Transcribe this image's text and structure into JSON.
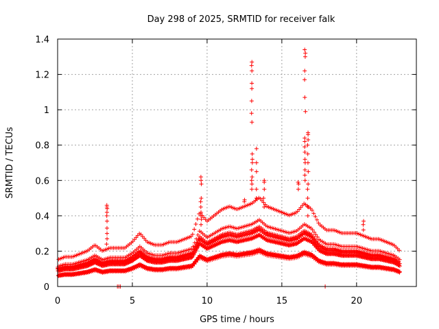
{
  "chart_data": {
    "type": "scatter",
    "title": "Day 298 of 2025, SRMTID for receiver falk",
    "xlabel": "GPS time / hours",
    "ylabel": "SRMTID / TECUs",
    "xlim": [
      0,
      24
    ],
    "ylim": [
      0,
      1.4
    ],
    "xticks": [
      0,
      5,
      10,
      15,
      20
    ],
    "xtick_labels": [
      "0",
      "5",
      "10",
      "15",
      "20"
    ],
    "yticks": [
      0,
      0.2,
      0.4,
      0.6,
      0.8,
      1.0,
      1.2,
      1.4
    ],
    "ytick_labels": [
      "0",
      "0.2",
      "0.4",
      "0.6",
      "0.8",
      "1",
      "1.2",
      "1.4"
    ],
    "grid": true,
    "marker": "plus",
    "color": "#ff0000",
    "profile": [
      [
        0.0,
        0.09
      ],
      [
        0.5,
        0.1
      ],
      [
        1.0,
        0.1
      ],
      [
        1.5,
        0.11
      ],
      [
        2.0,
        0.12
      ],
      [
        2.5,
        0.14
      ],
      [
        3.0,
        0.12
      ],
      [
        3.5,
        0.13
      ],
      [
        4.0,
        0.13
      ],
      [
        4.5,
        0.13
      ],
      [
        5.0,
        0.15
      ],
      [
        5.5,
        0.18
      ],
      [
        6.0,
        0.15
      ],
      [
        6.5,
        0.14
      ],
      [
        7.0,
        0.14
      ],
      [
        7.5,
        0.15
      ],
      [
        8.0,
        0.15
      ],
      [
        8.5,
        0.16
      ],
      [
        9.0,
        0.17
      ],
      [
        9.5,
        0.25
      ],
      [
        10.0,
        0.22
      ],
      [
        10.5,
        0.24
      ],
      [
        11.0,
        0.26
      ],
      [
        11.5,
        0.27
      ],
      [
        12.0,
        0.26
      ],
      [
        12.5,
        0.27
      ],
      [
        13.0,
        0.28
      ],
      [
        13.5,
        0.3
      ],
      [
        14.0,
        0.27
      ],
      [
        14.5,
        0.26
      ],
      [
        15.0,
        0.25
      ],
      [
        15.5,
        0.24
      ],
      [
        16.0,
        0.25
      ],
      [
        16.5,
        0.28
      ],
      [
        17.0,
        0.26
      ],
      [
        17.5,
        0.21
      ],
      [
        18.0,
        0.19
      ],
      [
        18.5,
        0.19
      ],
      [
        19.0,
        0.18
      ],
      [
        19.5,
        0.18
      ],
      [
        20.0,
        0.18
      ],
      [
        20.5,
        0.17
      ],
      [
        21.0,
        0.16
      ],
      [
        21.5,
        0.16
      ],
      [
        22.0,
        0.15
      ],
      [
        22.5,
        0.14
      ],
      [
        22.9,
        0.12
      ]
    ],
    "spikes": [
      {
        "x": 3.3,
        "values": [
          0.46,
          0.45,
          0.44,
          0.42,
          0.4,
          0.37,
          0.33,
          0.3,
          0.27,
          0.24
        ]
      },
      {
        "x": 9.6,
        "values": [
          0.62,
          0.6,
          0.58,
          0.5,
          0.48,
          0.45,
          0.42,
          0.4,
          0.38,
          0.35
        ]
      },
      {
        "x": 12.5,
        "values": [
          0.49,
          0.48
        ]
      },
      {
        "x": 13.0,
        "values": [
          1.27,
          1.25,
          1.22,
          1.15,
          1.12,
          1.05,
          0.98,
          0.93,
          0.75,
          0.72,
          0.7,
          0.66,
          0.62,
          0.6,
          0.58,
          0.55
        ]
      },
      {
        "x": 13.3,
        "values": [
          0.78,
          0.7,
          0.65,
          0.55,
          0.5
        ]
      },
      {
        "x": 13.8,
        "values": [
          0.6,
          0.59,
          0.55,
          0.5,
          0.45
        ]
      },
      {
        "x": 16.1,
        "values": [
          0.59,
          0.58,
          0.55
        ]
      },
      {
        "x": 16.55,
        "values": [
          1.34,
          1.32,
          1.3,
          1.22,
          1.17,
          1.07,
          0.99,
          0.84,
          0.82,
          0.79,
          0.76,
          0.72,
          0.7,
          0.66,
          0.63,
          0.6
        ]
      },
      {
        "x": 16.75,
        "values": [
          0.87,
          0.86,
          0.83,
          0.8,
          0.75,
          0.7,
          0.65,
          0.58,
          0.55,
          0.5,
          0.45,
          0.4
        ]
      },
      {
        "x": 20.45,
        "values": [
          0.37,
          0.35,
          0.32
        ]
      }
    ],
    "zero_points": [
      4.0,
      4.1,
      4.2,
      17.9
    ]
  }
}
